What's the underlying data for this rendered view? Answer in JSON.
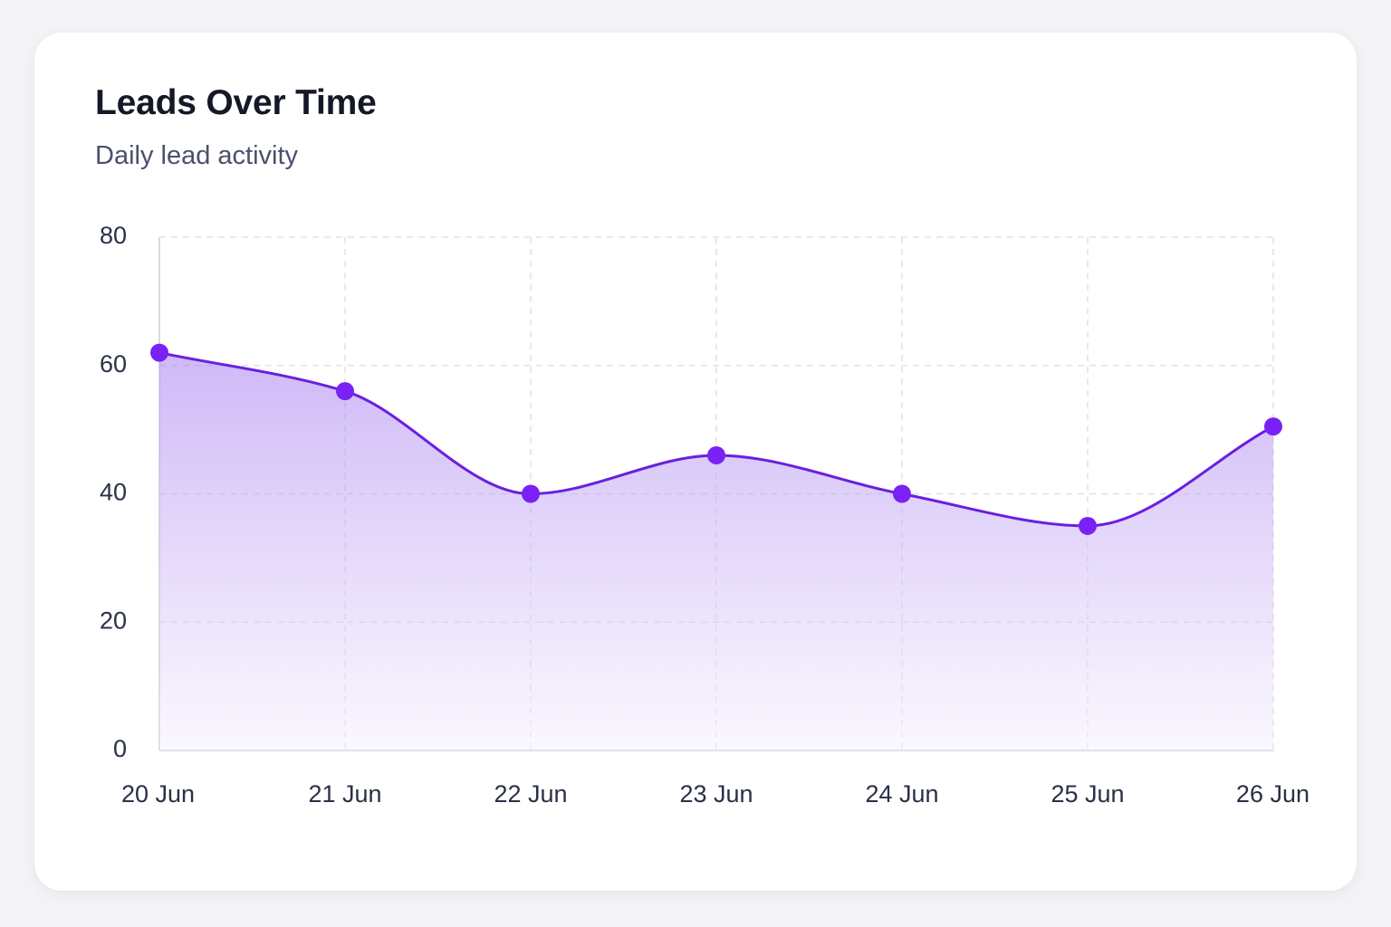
{
  "card": {
    "title": "Leads Over Time",
    "subtitle": "Daily lead activity"
  },
  "colors": {
    "line": "#6a1fe0",
    "point": "#7a22f5",
    "area_top": "#a77ff0",
    "area_bottom": "#f5f0fd",
    "grid": "#dcdce3",
    "axis": "#cfd0da"
  },
  "chart_data": {
    "type": "area",
    "title": "Leads Over Time",
    "subtitle": "Daily lead activity",
    "xlabel": "",
    "ylabel": "",
    "categories": [
      "20 Jun",
      "21 Jun",
      "22 Jun",
      "23 Jun",
      "24 Jun",
      "25 Jun",
      "26 Jun"
    ],
    "series": [
      {
        "values": [
          62,
          56,
          40,
          46,
          40,
          35,
          50.5
        ]
      }
    ],
    "ylim": [
      0,
      80
    ],
    "yticks": [
      0,
      20,
      40,
      60,
      80
    ],
    "grid": true,
    "grid_style": "dashed",
    "smooth": true,
    "markers": true,
    "legend": "none"
  }
}
